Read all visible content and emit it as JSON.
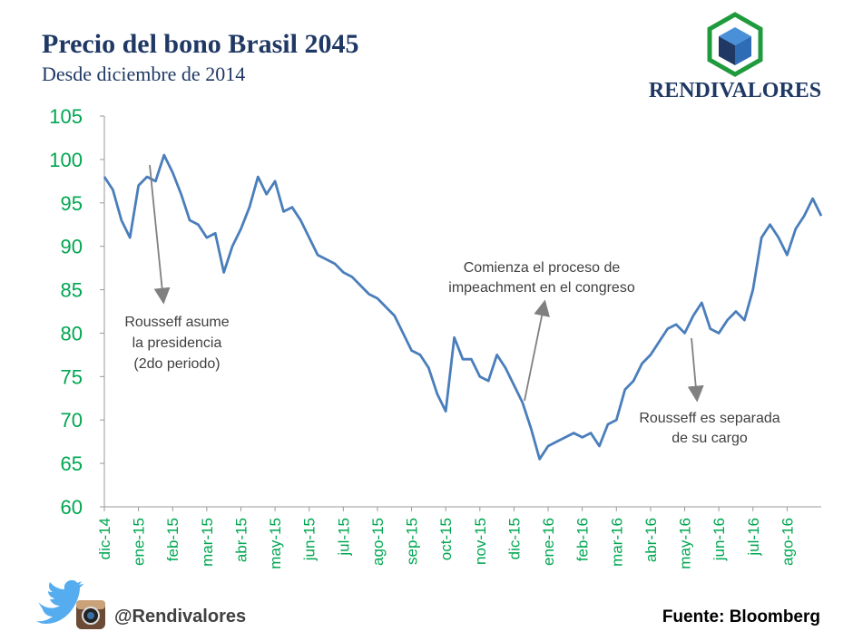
{
  "chart_data": {
    "type": "line",
    "title": "Precio del bono Brasil 2045",
    "subtitle": "Desde diciembre de 2014",
    "brand": "RENDIVALORES",
    "handle": "@Rendivalores",
    "source": "Fuente: Bloomberg",
    "color": "#4a7ebb",
    "values": [
      98,
      96.5,
      93,
      91,
      97,
      98,
      97.5,
      100.5,
      98.5,
      96,
      93,
      92.5,
      91,
      91.5,
      87,
      90,
      92,
      94.5,
      98,
      96,
      97.5,
      94,
      94.5,
      93,
      91,
      89,
      88.5,
      88,
      87,
      86.5,
      85.5,
      84.5,
      84,
      83,
      82,
      80,
      78,
      77.5,
      76,
      73,
      71,
      79.5,
      77,
      77,
      75,
      74.5,
      77.5,
      76,
      74,
      72,
      69,
      65.5,
      67,
      67.5,
      68,
      68.5,
      68,
      68.5,
      67,
      69.5,
      70,
      73.5,
      74.5,
      76.5,
      77.5,
      79,
      80.5,
      81,
      80,
      82,
      83.5,
      80.5,
      80,
      81.5,
      82.5,
      81.5,
      85,
      91,
      92.5,
      91,
      89,
      92,
      93.5,
      95.5,
      93.5
    ],
    "xlim": [
      0,
      84
    ],
    "xticks": [
      {
        "value": 0,
        "label": "dic-14"
      },
      {
        "value": 4,
        "label": "ene-15"
      },
      {
        "value": 8,
        "label": "feb-15"
      },
      {
        "value": 12,
        "label": "mar-15"
      },
      {
        "value": 16,
        "label": "abr-15"
      },
      {
        "value": 20,
        "label": "may-15"
      },
      {
        "value": 24,
        "label": "jun-15"
      },
      {
        "value": 28,
        "label": "jul-15"
      },
      {
        "value": 32,
        "label": "ago-15"
      },
      {
        "value": 36,
        "label": "sep-15"
      },
      {
        "value": 40,
        "label": "oct-15"
      },
      {
        "value": 44,
        "label": "nov-15"
      },
      {
        "value": 48,
        "label": "dic-15"
      },
      {
        "value": 52,
        "label": "ene-16"
      },
      {
        "value": 56,
        "label": "feb-16"
      },
      {
        "value": 60,
        "label": "mar-16"
      },
      {
        "value": 64,
        "label": "abr-16"
      },
      {
        "value": 68,
        "label": "may-16"
      },
      {
        "value": 72,
        "label": "jun-16"
      },
      {
        "value": 76,
        "label": "jul-16"
      },
      {
        "value": 80,
        "label": "ago-16"
      }
    ],
    "ylim": [
      60,
      105
    ],
    "yticks": [
      60,
      65,
      70,
      75,
      80,
      85,
      90,
      95,
      100,
      105
    ],
    "grid": false,
    "annotations": [
      [
        "Rousseff asume",
        "la presidencia",
        "(2do periodo)"
      ],
      [
        "Comienza el proceso de",
        "impeachment en el congreso"
      ],
      [
        "Rousseff es separada",
        "de su cargo"
      ]
    ]
  }
}
